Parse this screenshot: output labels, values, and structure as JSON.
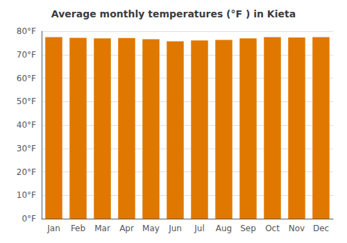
{
  "chart_data": {
    "type": "bar",
    "title": "Average monthly temperatures (°F ) in Kieta",
    "categories": [
      "Jan",
      "Feb",
      "Mar",
      "Apr",
      "May",
      "Jun",
      "Jul",
      "Aug",
      "Sep",
      "Oct",
      "Nov",
      "Dec"
    ],
    "values": [
      77.5,
      77.2,
      77.0,
      77.1,
      76.6,
      75.7,
      76.1,
      76.3,
      77.0,
      77.5,
      77.3,
      77.5
    ],
    "color": "#E07800",
    "ylim": [
      0,
      80
    ],
    "yticks": [
      {
        "value": 0,
        "label": "0°F"
      },
      {
        "value": 10,
        "label": "10°F"
      },
      {
        "value": 20,
        "label": "20°F"
      },
      {
        "value": 30,
        "label": "30°F"
      },
      {
        "value": 40,
        "label": "40°F"
      },
      {
        "value": 50,
        "label": "50°F"
      },
      {
        "value": 60,
        "label": "60°F"
      },
      {
        "value": 70,
        "label": "70°F"
      },
      {
        "value": 80,
        "label": "80°F"
      }
    ],
    "grid": true
  }
}
